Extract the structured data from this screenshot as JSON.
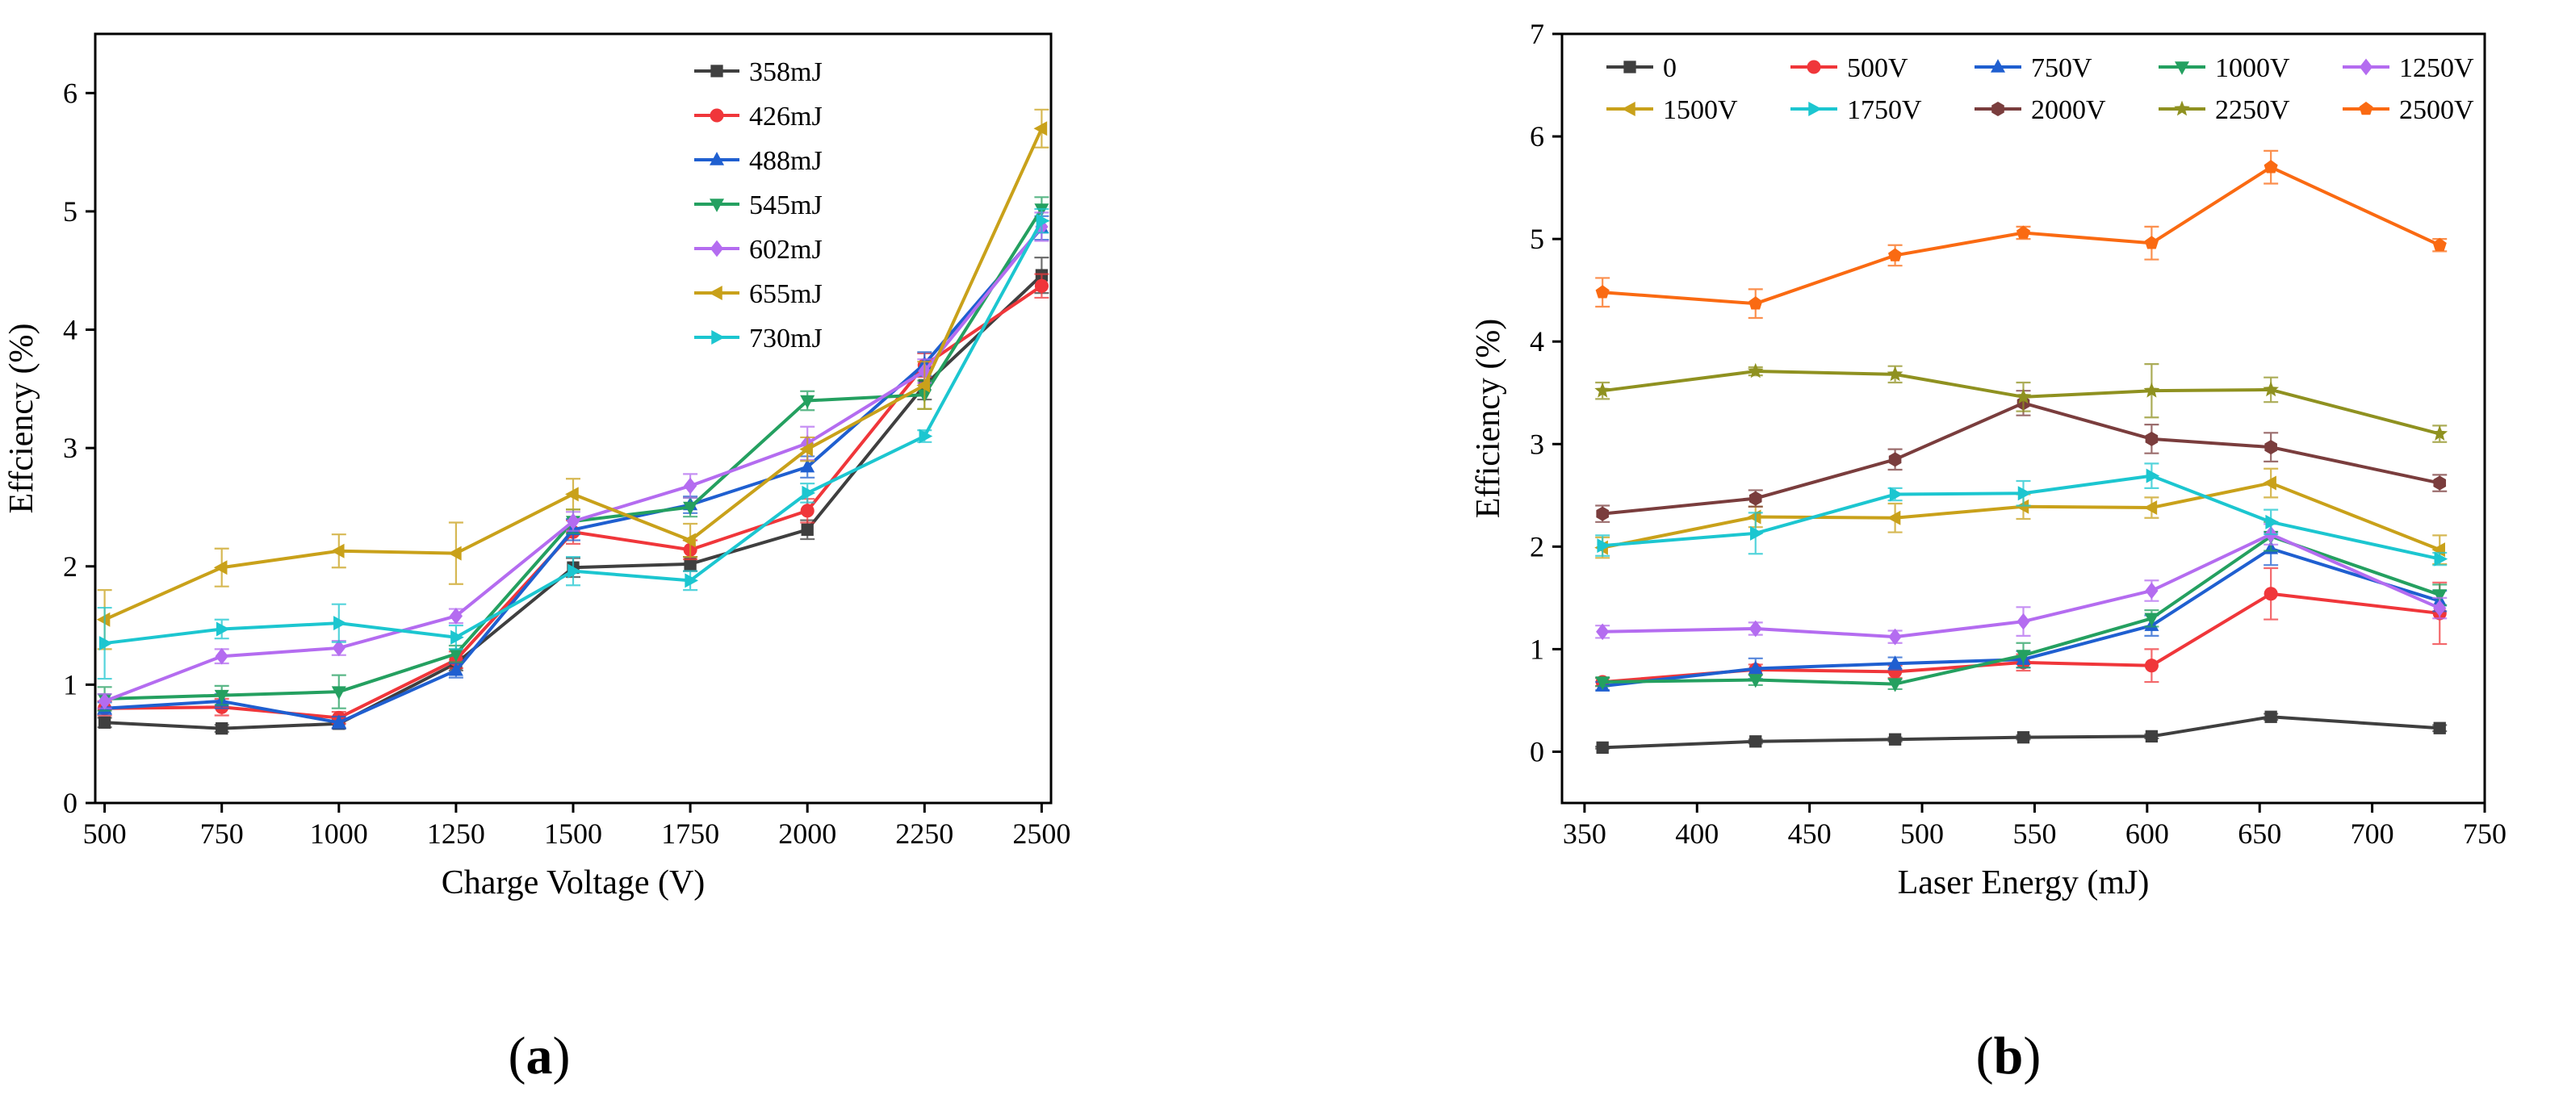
{
  "figure_title": "",
  "panel_labels": [
    {
      "open": "(",
      "letter": "a",
      "close": ")"
    },
    {
      "open": "(",
      "letter": "b",
      "close": ")"
    }
  ],
  "chart_data": [
    {
      "type": "line",
      "title": "",
      "xlabel": "Charge Voltage (V)",
      "ylabel": "Effciency (%)",
      "xlim": [
        480,
        2520
      ],
      "ylim": [
        0,
        6.5
      ],
      "x_ticks": [
        500,
        750,
        1000,
        1250,
        1500,
        1750,
        2000,
        2250,
        2500
      ],
      "y_ticks": [
        0,
        1,
        2,
        3,
        4,
        5,
        6
      ],
      "grid": false,
      "legend_position": "top-right",
      "x": [
        500,
        750,
        1000,
        1250,
        1500,
        1750,
        2000,
        2250,
        2500
      ],
      "series": [
        {
          "name": "358mJ",
          "color": "#3f3f3f",
          "marker": "square",
          "values": [
            0.68,
            0.63,
            0.67,
            1.18,
            1.99,
            2.02,
            2.31,
            3.53,
            4.46
          ],
          "errors": [
            0.04,
            0.03,
            0.04,
            0.06,
            0.08,
            0.06,
            0.08,
            0.12,
            0.15
          ]
        },
        {
          "name": "426mJ",
          "color": "#f0363a",
          "marker": "circle",
          "values": [
            0.8,
            0.81,
            0.72,
            1.21,
            2.29,
            2.14,
            2.47,
            3.7,
            4.37
          ],
          "errors": [
            0.06,
            0.07,
            0.05,
            0.07,
            0.1,
            0.08,
            0.1,
            0.1,
            0.1
          ]
        },
        {
          "name": "488mJ",
          "color": "#1f5fd0",
          "marker": "triangle-up",
          "values": [
            0.8,
            0.86,
            0.68,
            1.12,
            2.31,
            2.52,
            2.84,
            3.71,
            4.86
          ],
          "errors": [
            0.05,
            0.06,
            0.05,
            0.06,
            0.09,
            0.07,
            0.09,
            0.1,
            0.1
          ]
        },
        {
          "name": "545mJ",
          "color": "#24a060",
          "marker": "triangle-down",
          "values": [
            0.88,
            0.91,
            0.94,
            1.26,
            2.38,
            2.5,
            3.4,
            3.45,
            5.02
          ],
          "errors": [
            0.1,
            0.08,
            0.14,
            0.07,
            0.1,
            0.08,
            0.08,
            0.12,
            0.1
          ]
        },
        {
          "name": "602mJ",
          "color": "#b46cf0",
          "marker": "diamond",
          "values": [
            0.86,
            1.24,
            1.31,
            1.58,
            2.38,
            2.68,
            3.04,
            3.65,
            4.87
          ],
          "errors": [
            0.06,
            0.06,
            0.06,
            0.06,
            0.08,
            0.1,
            0.14,
            0.1,
            0.12
          ]
        },
        {
          "name": "655mJ",
          "color": "#c9a11a",
          "marker": "triangle-left",
          "values": [
            1.55,
            1.99,
            2.13,
            2.11,
            2.61,
            2.22,
            2.99,
            3.53,
            5.7
          ],
          "errors": [
            0.25,
            0.16,
            0.14,
            0.26,
            0.13,
            0.14,
            0.1,
            0.2,
            0.16
          ]
        },
        {
          "name": "730mJ",
          "color": "#1cc6d0",
          "marker": "triangle-right",
          "values": [
            1.35,
            1.47,
            1.52,
            1.4,
            1.96,
            1.88,
            2.62,
            3.1,
            4.92
          ],
          "errors": [
            0.3,
            0.08,
            0.16,
            0.1,
            0.12,
            0.08,
            0.08,
            0.05,
            0.1
          ]
        }
      ]
    },
    {
      "type": "line",
      "title": "",
      "xlabel": "Laser Energy (mJ)",
      "ylabel": "Efficiency (%)",
      "xlim": [
        340,
        750
      ],
      "ylim": [
        -0.5,
        7
      ],
      "x_ticks": [
        350,
        400,
        450,
        500,
        550,
        600,
        650,
        700,
        750
      ],
      "y_ticks": [
        0,
        1,
        2,
        3,
        4,
        5,
        6,
        7
      ],
      "grid": false,
      "legend_position": "top",
      "x": [
        358,
        426,
        488,
        545,
        602,
        655,
        730
      ],
      "series": [
        {
          "name": "0",
          "color": "#3f3f3f",
          "marker": "square",
          "values": [
            0.04,
            0.1,
            0.12,
            0.14,
            0.15,
            0.34,
            0.23
          ],
          "errors": [
            0.01,
            0.02,
            0.02,
            0.02,
            0.02,
            0.03,
            0.03
          ]
        },
        {
          "name": "500V",
          "color": "#f0363a",
          "marker": "circle",
          "values": [
            0.68,
            0.8,
            0.78,
            0.87,
            0.84,
            1.54,
            1.35
          ],
          "errors": [
            0.04,
            0.05,
            0.06,
            0.08,
            0.16,
            0.25,
            0.3
          ]
        },
        {
          "name": "750V",
          "color": "#1f5fd0",
          "marker": "triangle-up",
          "values": [
            0.64,
            0.81,
            0.86,
            0.9,
            1.23,
            1.98,
            1.47
          ],
          "errors": [
            0.04,
            0.1,
            0.06,
            0.08,
            0.1,
            0.16,
            0.1
          ]
        },
        {
          "name": "1000V",
          "color": "#24a060",
          "marker": "triangle-down",
          "values": [
            0.68,
            0.7,
            0.66,
            0.94,
            1.3,
            2.1,
            1.53
          ],
          "errors": [
            0.04,
            0.05,
            0.05,
            0.12,
            0.08,
            0.14,
            0.1
          ]
        },
        {
          "name": "1250V",
          "color": "#b46cf0",
          "marker": "diamond",
          "values": [
            1.17,
            1.2,
            1.12,
            1.27,
            1.57,
            2.12,
            1.4
          ],
          "errors": [
            0.06,
            0.06,
            0.06,
            0.14,
            0.1,
            0.1,
            0.1
          ]
        },
        {
          "name": "1500V",
          "color": "#c9a11a",
          "marker": "triangle-left",
          "values": [
            1.99,
            2.29,
            2.28,
            2.39,
            2.38,
            2.62,
            1.97
          ],
          "errors": [
            0.1,
            0.1,
            0.14,
            0.12,
            0.1,
            0.14,
            0.14
          ]
        },
        {
          "name": "1750V",
          "color": "#1cc6d0",
          "marker": "triangle-right",
          "values": [
            2.01,
            2.13,
            2.51,
            2.52,
            2.69,
            2.24,
            1.88
          ],
          "errors": [
            0.1,
            0.2,
            0.06,
            0.12,
            0.12,
            0.12,
            0.06
          ]
        },
        {
          "name": "2000V",
          "color": "#7a3d3d",
          "marker": "hexagon",
          "values": [
            2.32,
            2.47,
            2.85,
            3.4,
            3.05,
            2.97,
            2.62
          ],
          "errors": [
            0.08,
            0.08,
            0.1,
            0.12,
            0.14,
            0.14,
            0.08
          ]
        },
        {
          "name": "2250V",
          "color": "#8f9120",
          "marker": "star",
          "values": [
            3.52,
            3.71,
            3.68,
            3.46,
            3.52,
            3.53,
            3.1
          ],
          "errors": [
            0.08,
            0.04,
            0.08,
            0.14,
            0.26,
            0.12,
            0.08
          ]
        },
        {
          "name": "2500V",
          "color": "#fa6a12",
          "marker": "pentagon",
          "values": [
            4.48,
            4.37,
            4.84,
            5.06,
            4.96,
            5.7,
            4.94
          ],
          "errors": [
            0.14,
            0.14,
            0.1,
            0.06,
            0.16,
            0.16,
            0.06
          ]
        }
      ]
    }
  ]
}
